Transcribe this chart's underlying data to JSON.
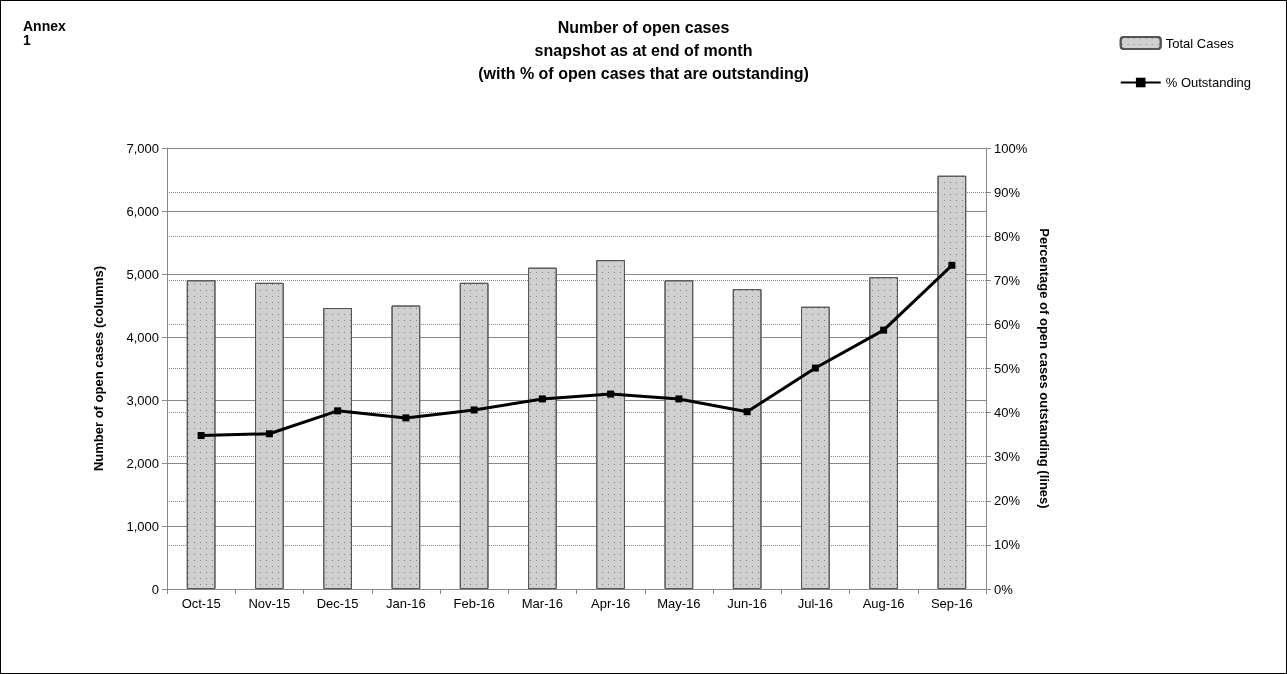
{
  "chart_data": {
    "type": "bar",
    "title": "Number of open cases\nsnapshot as at end of month\n(with % of open cases that are outstanding)",
    "annotations": [
      "Annex\n1"
    ],
    "ylabel": "Number of open cases (columns)",
    "y2label": "Percentage of open cases outstanding (lines)",
    "categories": [
      "Oct-15",
      "Nov-15",
      "Dec-15",
      "Jan-16",
      "Feb-16",
      "Mar-16",
      "Apr-16",
      "May-16",
      "Jun-16",
      "Jul-16",
      "Aug-16",
      "Sep-16"
    ],
    "series": [
      {
        "name": "Total Cases",
        "color": "#d0d0d0",
        "values": [
          4900,
          4860,
          4460,
          4500,
          4860,
          5100,
          5220,
          4900,
          4760,
          4480,
          4950,
          6560
        ]
      },
      {
        "name": "% Outstanding",
        "type": "line",
        "axis": "y2",
        "color": "#000000",
        "values": [
          34.8,
          35.2,
          40.4,
          38.8,
          40.6,
          43.1,
          44.2,
          43.1,
          40.2,
          50.1,
          58.7,
          73.4
        ]
      }
    ],
    "ylim": [
      0,
      7000
    ],
    "yticks": [
      0,
      {
        "value": 1000,
        "label": "1,000"
      },
      {
        "value": 2000,
        "label": "2,000"
      },
      {
        "value": 3000,
        "label": "3,000"
      },
      {
        "value": 4000,
        "label": "4,000"
      },
      {
        "value": 5000,
        "label": "5,000"
      },
      {
        "value": 6000,
        "label": "6,000"
      },
      {
        "value": 7000,
        "label": "7,000"
      }
    ],
    "y2lim": [
      0,
      100
    ],
    "y2ticks": [
      {
        "value": 0,
        "label": "0%"
      },
      {
        "value": 10,
        "label": "10%"
      },
      {
        "value": 20,
        "label": "20%"
      },
      {
        "value": 30,
        "label": "30%"
      },
      {
        "value": 40,
        "label": "40%"
      },
      {
        "value": 50,
        "label": "50%"
      },
      {
        "value": 60,
        "label": "60%"
      },
      {
        "value": 70,
        "label": "70%"
      },
      {
        "value": 80,
        "label": "80%"
      },
      {
        "value": 90,
        "label": "90%"
      },
      {
        "value": 100,
        "label": "100%"
      }
    ],
    "grid": true,
    "legend": "top right",
    "marker": "square",
    "line_style": "solid"
  }
}
